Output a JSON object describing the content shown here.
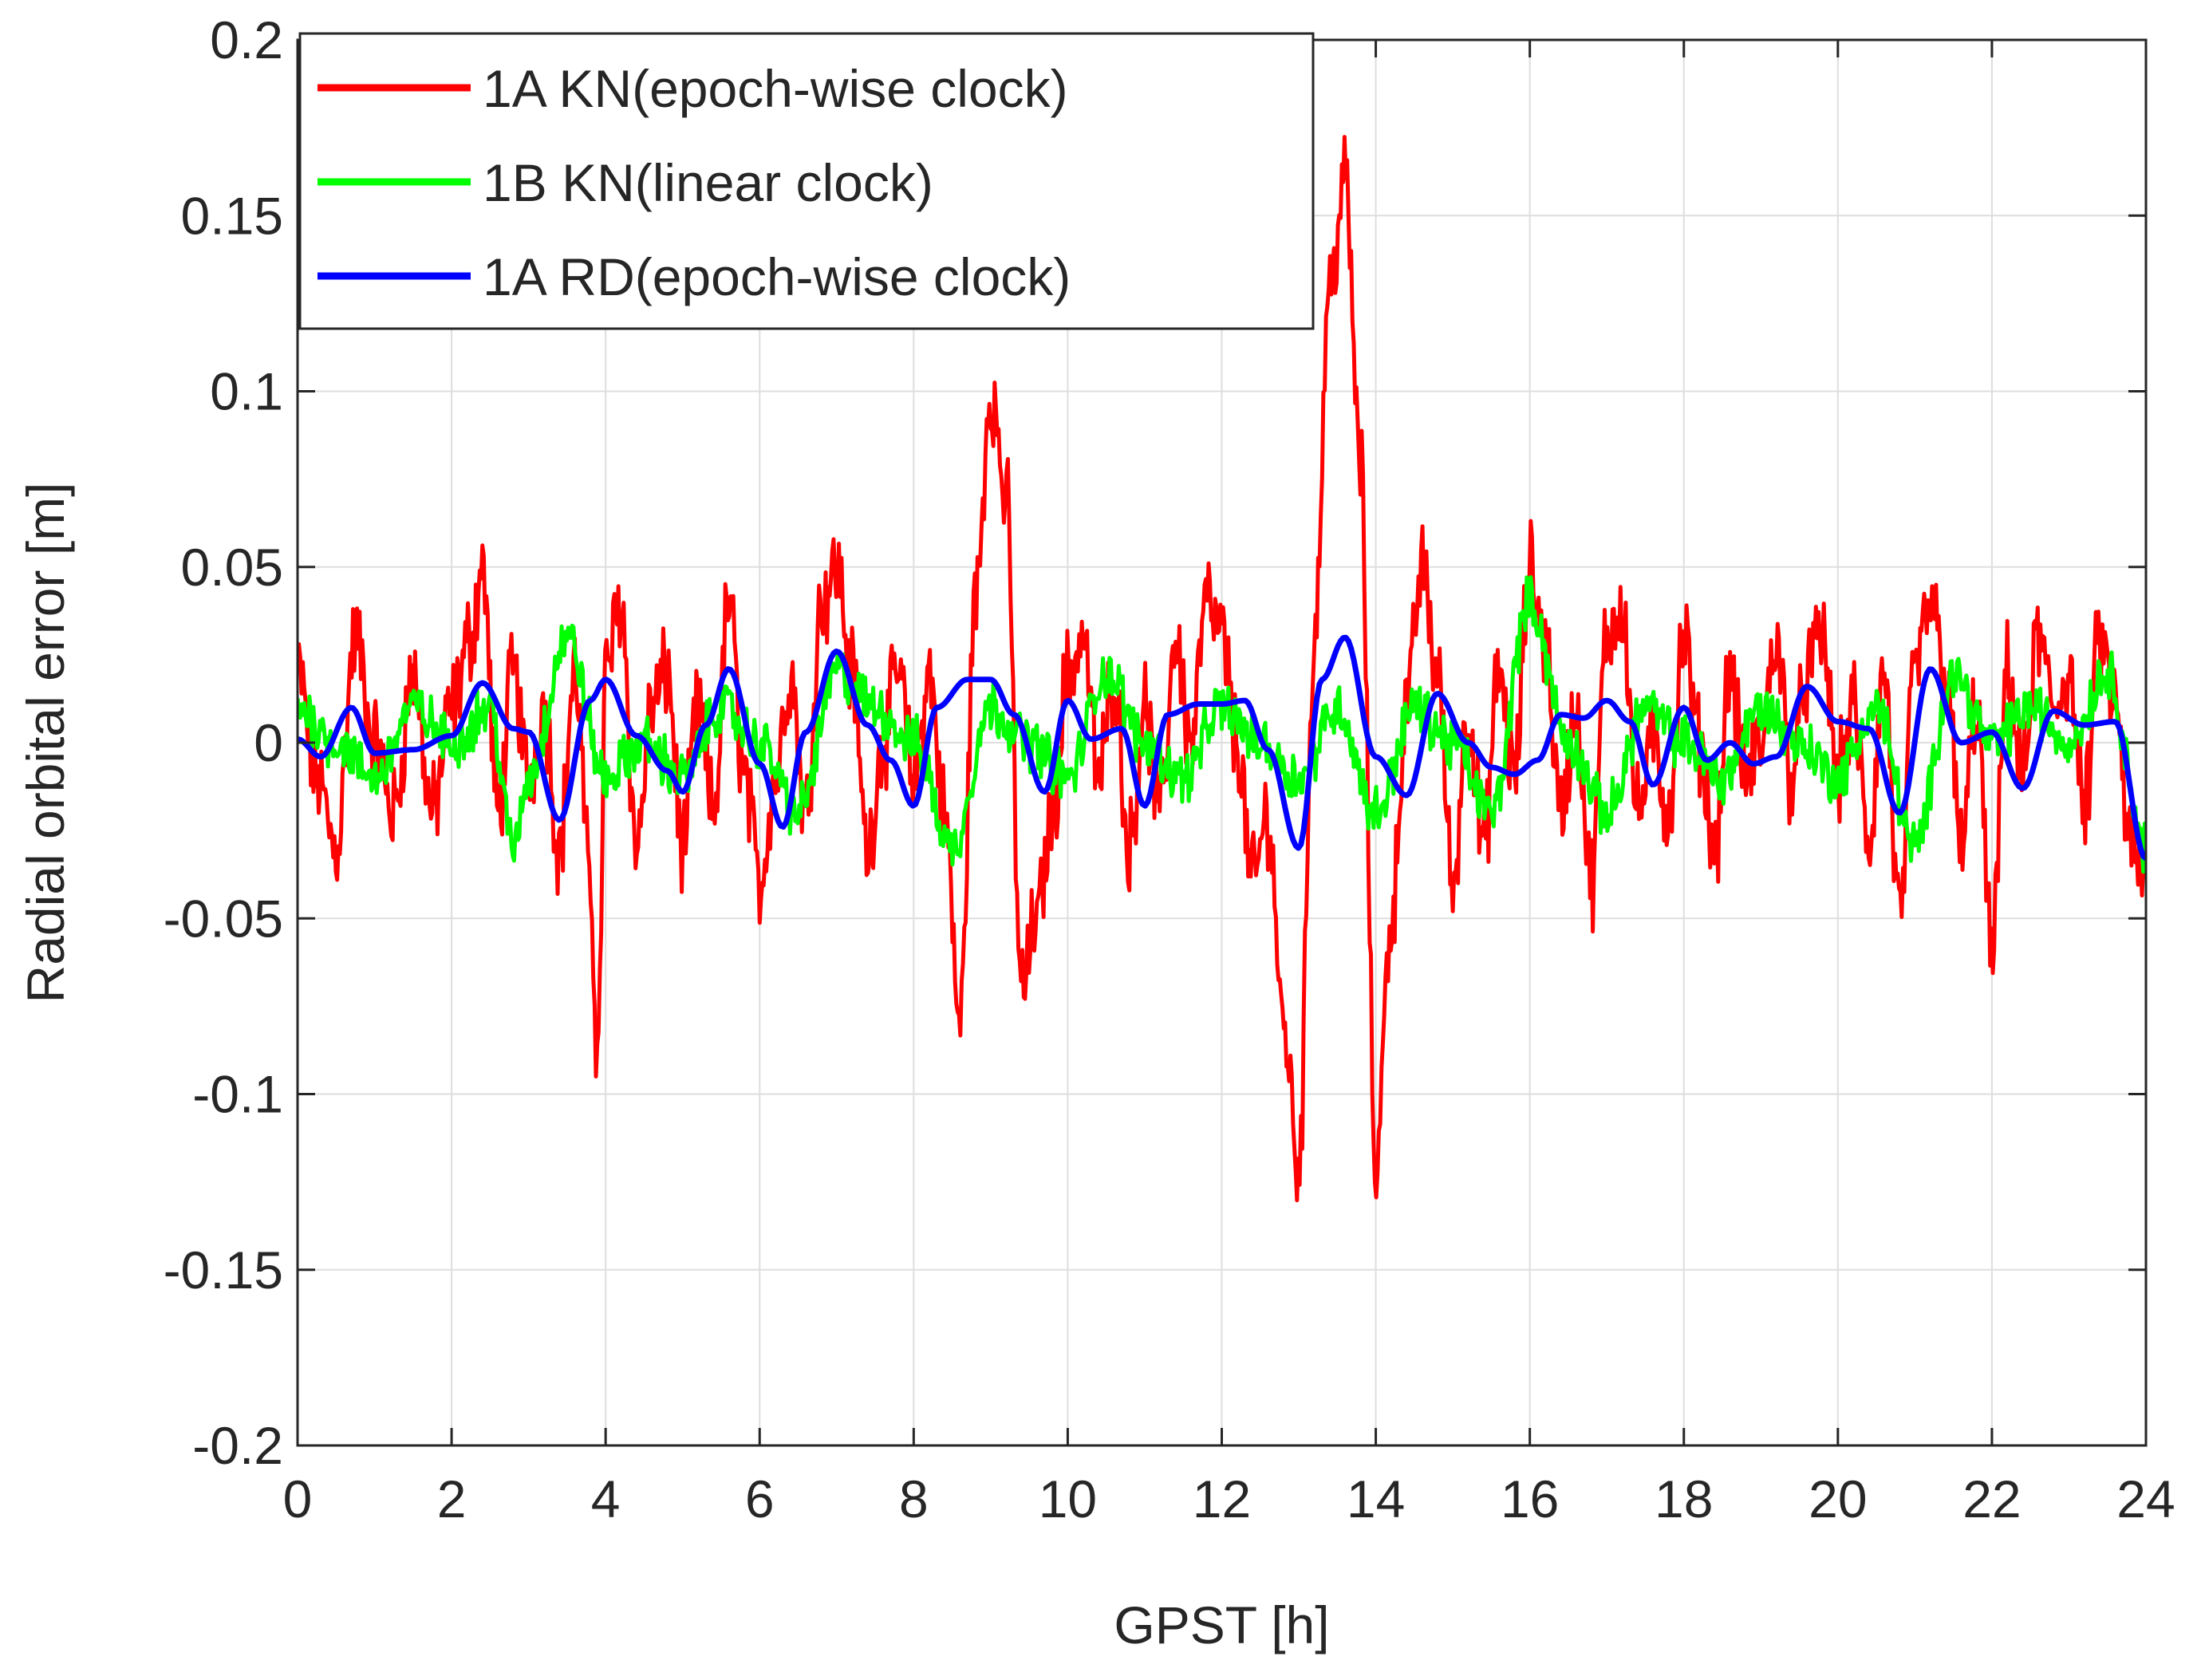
{
  "chart_data": {
    "type": "line",
    "title": "",
    "xlabel": "GPST [h]",
    "ylabel": "Radial orbital error [m]",
    "xlim": [
      0,
      24
    ],
    "ylim": [
      -0.2,
      0.2
    ],
    "grid": true,
    "legend_position": "top-left",
    "x_ticks": [
      0,
      2,
      4,
      6,
      8,
      10,
      12,
      14,
      16,
      18,
      20,
      22,
      24
    ],
    "x_tick_labels": [
      "0",
      "2",
      "4",
      "6",
      "8",
      "10",
      "12",
      "14",
      "16",
      "18",
      "20",
      "22",
      "24"
    ],
    "y_ticks": [
      -0.2,
      -0.15,
      -0.1,
      -0.05,
      0,
      0.05,
      0.1,
      0.15,
      0.2
    ],
    "y_tick_labels": [
      "-0.2",
      "-0.15",
      "-0.1",
      "-0.05",
      "0",
      "0.05",
      "0.1",
      "0.15",
      "0.2"
    ],
    "series": [
      {
        "name": "1A KN(epoch-wise clock)",
        "color": "#ff0000",
        "noise_amplitude": 0.011,
        "x": [
          0,
          0.25,
          0.5,
          0.75,
          1.0,
          1.25,
          1.5,
          1.75,
          2.0,
          2.25,
          2.4,
          2.6,
          2.8,
          3.0,
          3.2,
          3.4,
          3.6,
          3.8,
          3.9,
          4.0,
          4.2,
          4.4,
          4.6,
          4.8,
          5.0,
          5.2,
          5.4,
          5.6,
          5.8,
          6.0,
          6.2,
          6.4,
          6.6,
          6.8,
          7.0,
          7.2,
          7.4,
          7.6,
          7.8,
          8.0,
          8.2,
          8.4,
          8.6,
          8.8,
          9.0,
          9.2,
          9.4,
          9.6,
          9.8,
          10.0,
          10.2,
          10.4,
          10.6,
          10.8,
          11.0,
          11.2,
          11.4,
          11.6,
          11.8,
          12.0,
          12.2,
          12.4,
          12.6,
          12.8,
          13.0,
          13.2,
          13.4,
          13.6,
          13.8,
          14.0,
          14.2,
          14.4,
          14.6,
          14.8,
          15.0,
          15.2,
          15.4,
          15.6,
          15.8,
          16.0,
          16.2,
          16.4,
          16.6,
          16.8,
          17.0,
          17.2,
          17.4,
          17.6,
          17.8,
          18.0,
          18.2,
          18.4,
          18.6,
          18.8,
          19.0,
          19.2,
          19.4,
          19.6,
          19.8,
          20.0,
          20.2,
          20.4,
          20.6,
          20.8,
          21.0,
          21.2,
          21.4,
          21.6,
          21.8,
          22.0,
          22.2,
          22.4,
          22.6,
          22.8,
          23.0,
          23.2,
          23.4,
          23.6,
          23.8,
          24.0
        ],
        "y": [
          0.02,
          -0.01,
          -0.03,
          0.03,
          0.0,
          -0.02,
          0.02,
          -0.02,
          0.01,
          0.03,
          0.05,
          -0.02,
          0.02,
          -0.01,
          0.01,
          -0.03,
          0.02,
          -0.04,
          -0.09,
          0.02,
          0.04,
          -0.03,
          0.01,
          0.02,
          -0.03,
          0.01,
          -0.02,
          0.04,
          -0.01,
          -0.04,
          -0.01,
          0.02,
          -0.02,
          0.04,
          0.05,
          0.02,
          -0.03,
          0.0,
          0.02,
          -0.01,
          0.02,
          -0.02,
          -0.08,
          0.04,
          0.1,
          0.07,
          -0.07,
          -0.05,
          -0.02,
          0.02,
          0.03,
          -0.01,
          0.02,
          -0.03,
          0.01,
          -0.02,
          0.03,
          0.0,
          0.04,
          0.03,
          0.0,
          -0.04,
          -0.02,
          -0.08,
          -0.12,
          0.03,
          0.13,
          0.16,
          0.08,
          -0.12,
          -0.05,
          0.01,
          0.05,
          0.02,
          -0.04,
          0.01,
          -0.03,
          0.02,
          -0.01,
          0.05,
          0.03,
          -0.02,
          0.01,
          -0.04,
          0.03,
          0.04,
          -0.02,
          0.0,
          -0.02,
          0.03,
          0.0,
          -0.03,
          0.02,
          -0.01,
          0.0,
          0.03,
          -0.01,
          0.02,
          0.03,
          -0.01,
          0.01,
          -0.03,
          0.02,
          -0.05,
          0.02,
          0.04,
          0.02,
          -0.03,
          0.01,
          -0.06,
          0.02,
          -0.01,
          0.03,
          0.01,
          0.02,
          -0.02,
          0.03,
          0.01,
          -0.03,
          -0.04
        ]
      },
      {
        "name": "1B KN(linear clock)",
        "color": "#00ff00",
        "noise_amplitude": 0.006,
        "x": [
          0,
          0.5,
          1.0,
          1.5,
          2.0,
          2.5,
          2.8,
          3.0,
          3.5,
          4.0,
          4.5,
          5.0,
          5.5,
          6.0,
          6.5,
          7.0,
          7.5,
          8.0,
          8.5,
          9.0,
          9.5,
          10.0,
          10.5,
          11.0,
          11.5,
          12.0,
          12.5,
          13.0,
          13.5,
          14.0,
          14.5,
          15.0,
          15.5,
          16.0,
          16.5,
          17.0,
          17.5,
          18.0,
          18.5,
          19.0,
          19.5,
          20.0,
          20.5,
          21.0,
          21.5,
          22.0,
          22.5,
          23.0,
          23.5,
          24.0
        ],
        "y": [
          0.01,
          0.0,
          -0.01,
          0.01,
          0.0,
          0.01,
          -0.03,
          -0.01,
          0.03,
          -0.01,
          0.0,
          -0.01,
          0.01,
          0.0,
          -0.02,
          0.02,
          0.01,
          0.0,
          -0.03,
          0.01,
          0.0,
          -0.01,
          0.02,
          0.0,
          -0.01,
          0.01,
          0.0,
          -0.01,
          0.01,
          -0.02,
          0.01,
          0.0,
          -0.02,
          0.04,
          0.0,
          -0.02,
          0.01,
          0.0,
          -0.01,
          0.01,
          0.0,
          -0.01,
          0.01,
          -0.03,
          0.02,
          0.0,
          0.01,
          0.0,
          0.02,
          -0.03
        ]
      },
      {
        "name": "1A RD(epoch-wise clock)",
        "color": "#0000ff",
        "noise_amplitude": 0,
        "x": [
          0,
          0.3,
          0.7,
          1.0,
          1.5,
          2.0,
          2.4,
          2.8,
          3.0,
          3.4,
          3.8,
          4.0,
          4.4,
          4.8,
          5.0,
          5.3,
          5.6,
          6.0,
          6.3,
          6.6,
          7.0,
          7.4,
          7.7,
          8.0,
          8.3,
          8.7,
          9.0,
          9.3,
          9.7,
          10.0,
          10.3,
          10.7,
          11.0,
          11.3,
          11.7,
          12.0,
          12.3,
          12.6,
          13.0,
          13.3,
          13.6,
          14.0,
          14.4,
          14.8,
          15.2,
          15.5,
          15.8,
          16.1,
          16.4,
          16.7,
          17.0,
          17.3,
          17.6,
          18.0,
          18.3,
          18.6,
          18.9,
          19.2,
          19.6,
          20.0,
          20.4,
          20.8,
          21.2,
          21.6,
          22.0,
          22.4,
          22.8,
          23.2,
          23.6,
          24.0
        ],
        "y": [
          0.001,
          -0.004,
          0.01,
          -0.003,
          -0.002,
          0.002,
          0.017,
          0.004,
          0.003,
          -0.022,
          0.012,
          0.018,
          0.002,
          -0.008,
          -0.014,
          0.005,
          0.021,
          -0.006,
          -0.024,
          0.003,
          0.026,
          0.005,
          -0.005,
          -0.018,
          0.01,
          0.018,
          0.018,
          0.008,
          -0.014,
          0.012,
          0.001,
          0.004,
          -0.018,
          0.008,
          0.011,
          0.011,
          0.012,
          -0.002,
          -0.03,
          0.018,
          0.03,
          -0.004,
          -0.015,
          0.014,
          0.0,
          -0.007,
          -0.009,
          -0.005,
          0.008,
          0.007,
          0.012,
          0.006,
          -0.012,
          0.01,
          -0.005,
          0.0,
          -0.006,
          -0.004,
          0.016,
          0.006,
          0.004,
          -0.02,
          0.021,
          0.0,
          0.003,
          -0.013,
          0.009,
          0.005,
          0.006,
          -0.033
        ]
      }
    ]
  }
}
